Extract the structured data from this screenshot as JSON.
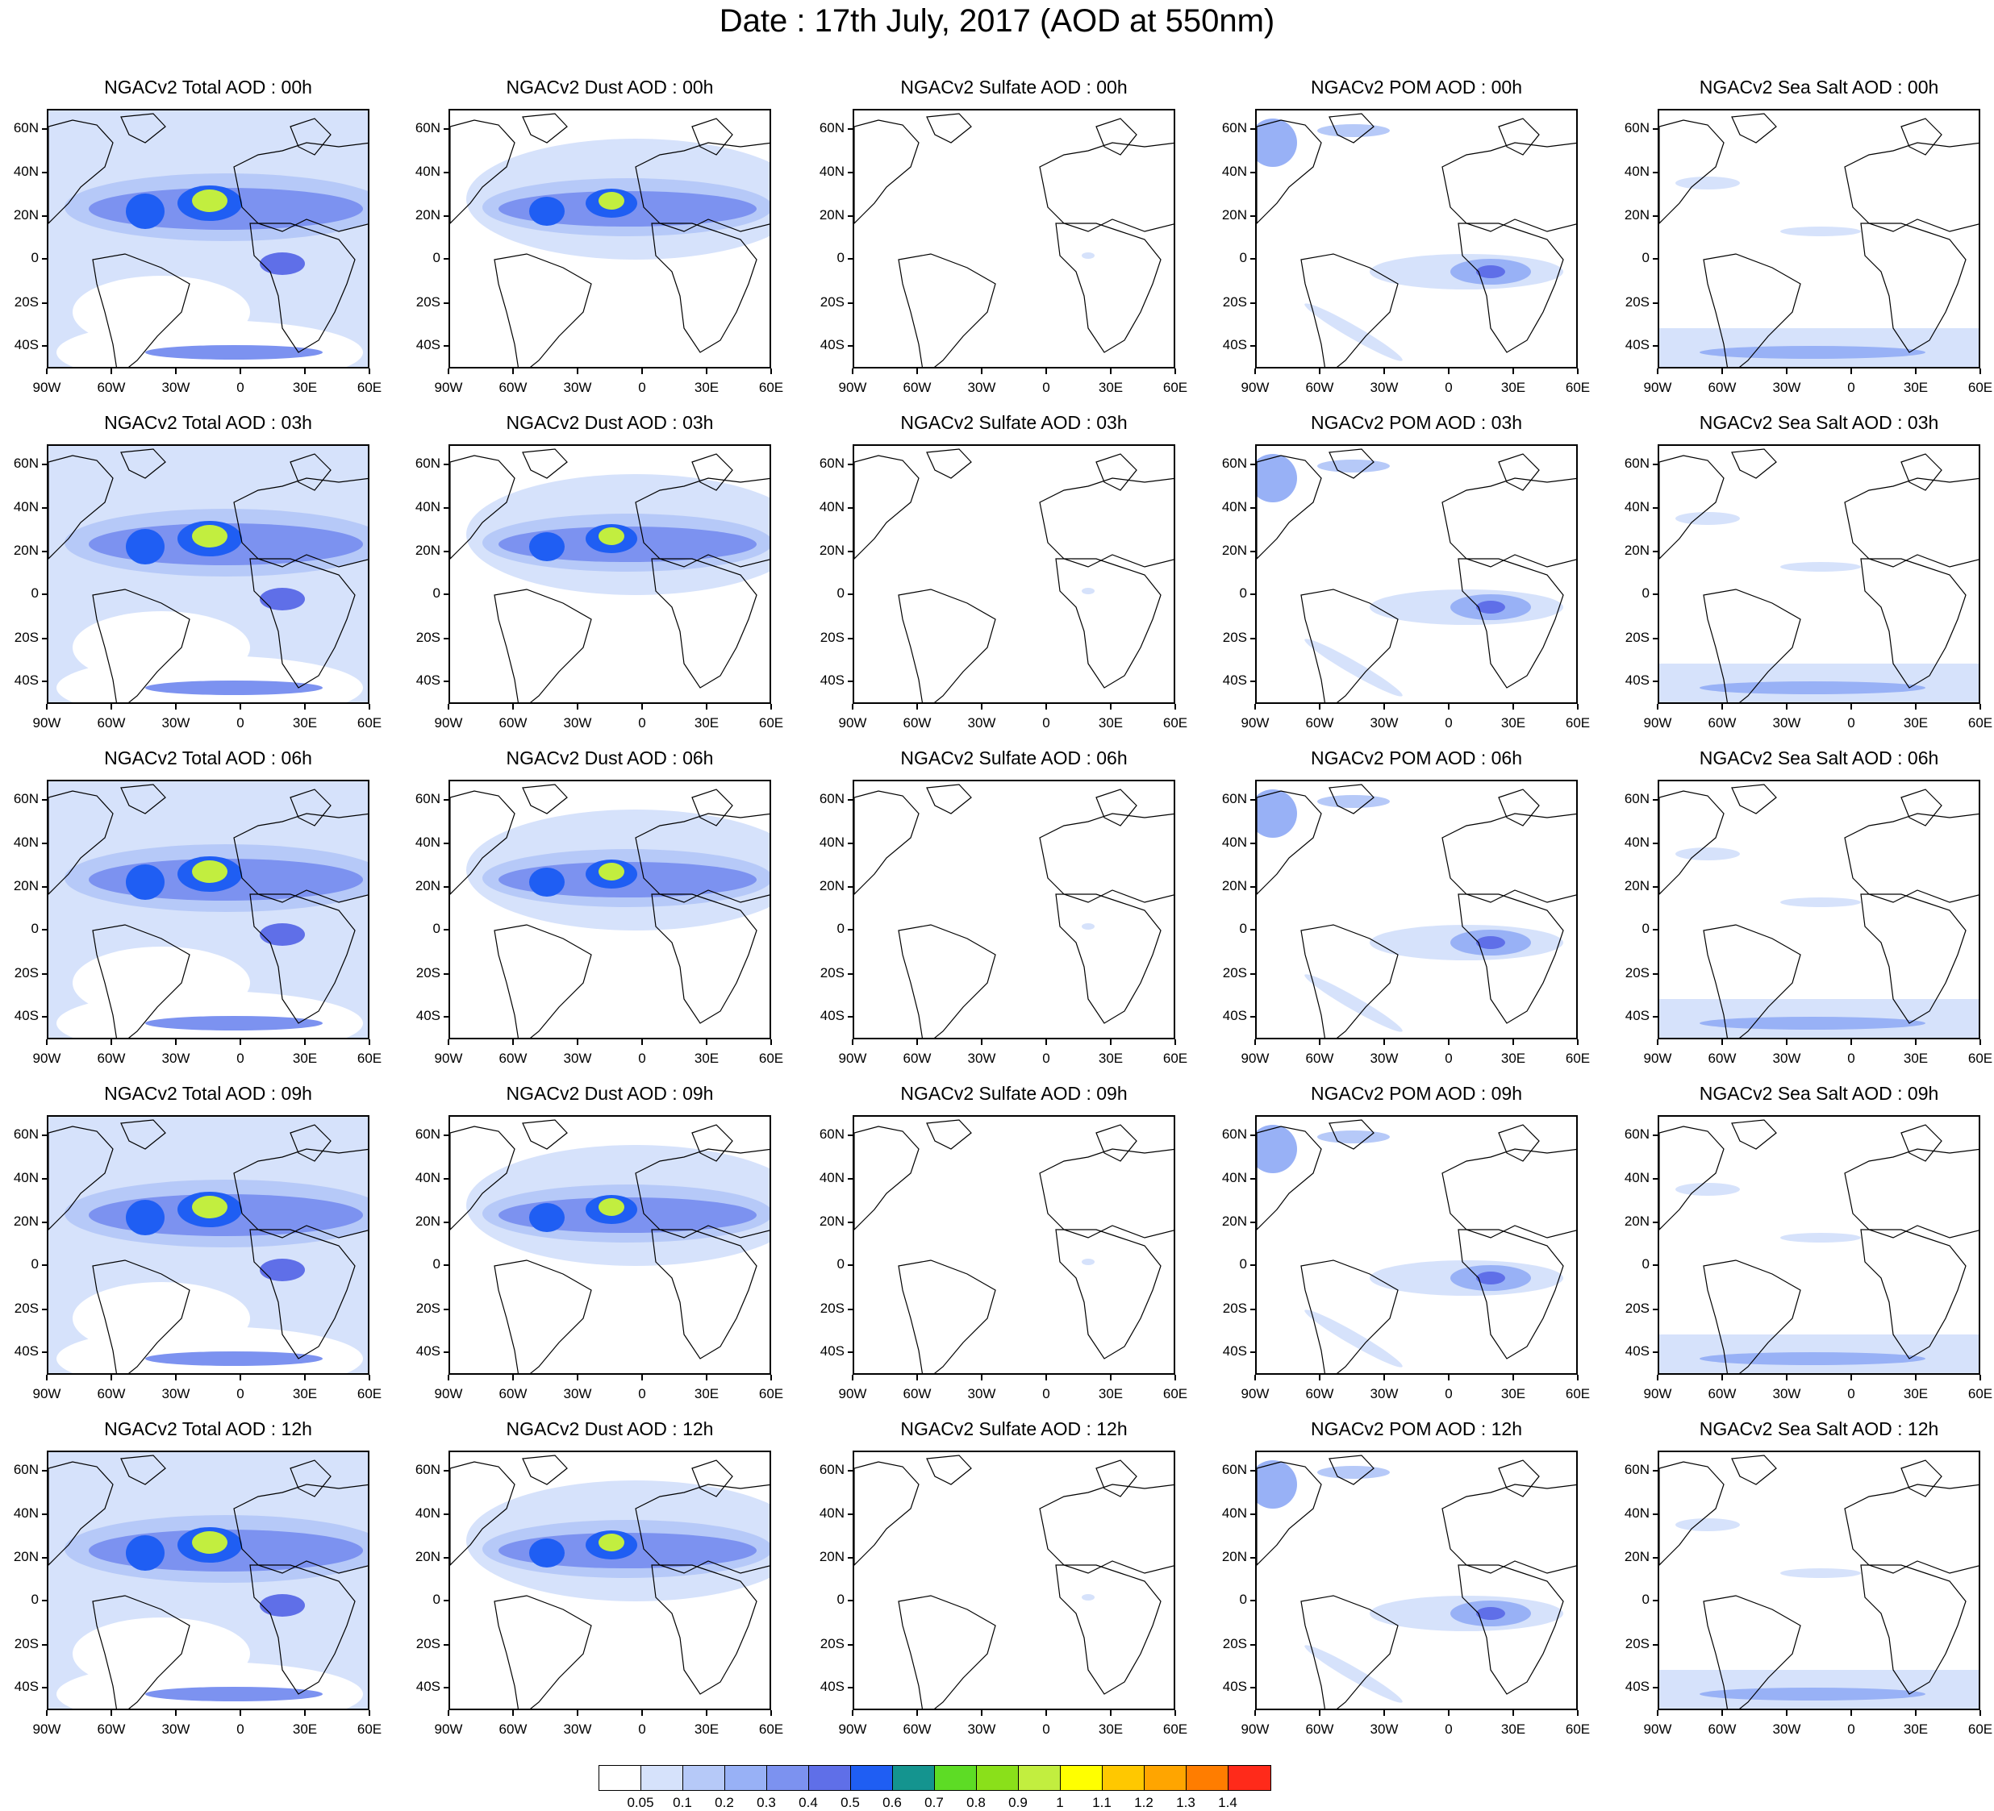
{
  "title": "Date : 17th July, 2017 (AOD at 550nm)",
  "lat_labels": [
    "60N",
    "40N",
    "20N",
    "0",
    "20S",
    "40S"
  ],
  "lon_labels": [
    "90W",
    "60W",
    "30W",
    "0",
    "30E",
    "60E"
  ],
  "panels": [
    [
      "NGACv2 Total AOD : 00h",
      "NGACv2 Dust AOD : 00h",
      "NGACv2 Sulfate AOD : 00h",
      "NGACv2 POM AOD : 00h",
      "NGACv2 Sea Salt AOD : 00h"
    ],
    [
      "NGACv2 Total AOD : 03h",
      "NGACv2 Dust AOD : 03h",
      "NGACv2 Sulfate AOD : 03h",
      "NGACv2 POM AOD : 03h",
      "NGACv2 Sea Salt AOD : 03h"
    ],
    [
      "NGACv2 Total AOD : 06h",
      "NGACv2 Dust AOD : 06h",
      "NGACv2 Sulfate AOD : 06h",
      "NGACv2 POM AOD : 06h",
      "NGACv2 Sea Salt AOD : 06h"
    ],
    [
      "NGACv2 Total AOD : 09h",
      "NGACv2 Dust AOD : 09h",
      "NGACv2 Sulfate AOD : 09h",
      "NGACv2 POM AOD : 09h",
      "NGACv2 Sea Salt  AOD : 09h"
    ],
    [
      "NGACv2 Total AOD  : 12h",
      "NGACv2 Dust AOD : 12h",
      "NGACv2 Sulfate AOD : 12h",
      "NGACv2 POM  AOD : 12h",
      "NGACv2 Sea Salt  AOD : 12h"
    ]
  ],
  "colorbar": {
    "colors": [
      "#ffffff",
      "#d6e2fb",
      "#b6c9f8",
      "#98b1f6",
      "#7c92f0",
      "#5f6fe8",
      "#1f5ef3",
      "#14948f",
      "#5ddc25",
      "#8ae01a",
      "#c2ee3f",
      "#ffff00",
      "#ffc800",
      "#ffa500",
      "#ff7d00",
      "#ff2a1a"
    ],
    "labels": [
      "0.05",
      "0.1",
      "0.2",
      "0.3",
      "0.4",
      "0.5",
      "0.6",
      "0.7",
      "0.8",
      "0.9",
      "1",
      "1.1",
      "1.2",
      "1.3",
      "1.4"
    ]
  }
}
